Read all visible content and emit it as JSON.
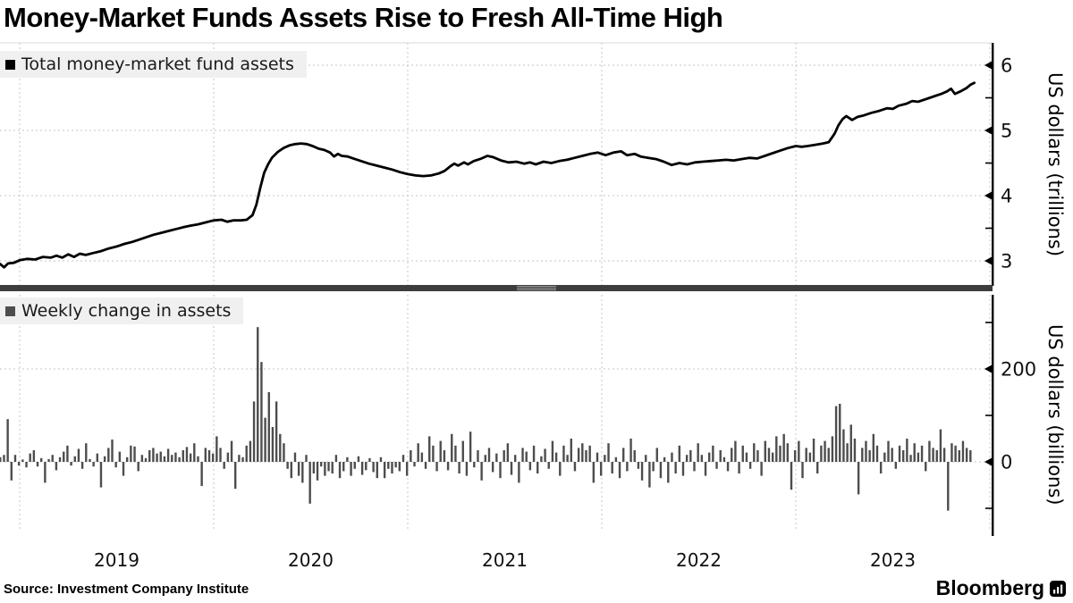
{
  "title": "Money-Market Funds Assets Rise to Fresh All-Time High",
  "source": "Source: Investment Company Institute",
  "brand": {
    "name": "Bloomberg"
  },
  "colors": {
    "line": "#000000",
    "bar": "#4d4d4d",
    "grid": "#c4c4c4",
    "axis": "#000000",
    "legend_bg": "#f0f0f0",
    "separator": "#3d3d3d",
    "legend_swatch_top": "#000000",
    "legend_swatch_bottom": "#4d4d4d",
    "text": "#111111"
  },
  "x_axis": {
    "year_labels": [
      "2019",
      "2020",
      "2021",
      "2022",
      "2023"
    ]
  },
  "panels": [
    {
      "legend": "Total money-market fund assets",
      "axis_title": "US dollars (trillions)",
      "ticks_major": [
        {
          "v": 3,
          "label": "3"
        },
        {
          "v": 4,
          "label": "4"
        },
        {
          "v": 5,
          "label": "5"
        },
        {
          "v": 6,
          "label": "6"
        }
      ],
      "ticks_minor": [
        3.5,
        4.5,
        5.5
      ],
      "gridlines": [
        3,
        4,
        5,
        6
      ]
    },
    {
      "legend": "Weekly change in assets",
      "axis_title": "US dollars (billions)",
      "ticks_major": [
        {
          "v": 0,
          "label": "0"
        },
        {
          "v": 200,
          "label": "200"
        }
      ],
      "ticks_minor": [
        -100,
        100,
        300
      ],
      "gridlines": [
        0,
        200
      ]
    }
  ],
  "chart_data": [
    {
      "type": "line",
      "name": "Total money-market fund assets",
      "x_unit": "decimal_year",
      "y_unit": "US dollars (trillions)",
      "ylim": [
        2.62,
        6.34
      ],
      "xlim": [
        2018.9,
        2024.0
      ],
      "grid": true,
      "legend_position": "top-left",
      "points": [
        [
          2018.9,
          2.95
        ],
        [
          2018.92,
          2.9
        ],
        [
          2018.94,
          2.96
        ],
        [
          2018.97,
          2.97
        ],
        [
          2019.0,
          3.01
        ],
        [
          2019.04,
          3.03
        ],
        [
          2019.08,
          3.02
        ],
        [
          2019.12,
          3.06
        ],
        [
          2019.16,
          3.05
        ],
        [
          2019.19,
          3.08
        ],
        [
          2019.22,
          3.05
        ],
        [
          2019.25,
          3.1
        ],
        [
          2019.28,
          3.06
        ],
        [
          2019.31,
          3.11
        ],
        [
          2019.34,
          3.09
        ],
        [
          2019.38,
          3.12
        ],
        [
          2019.42,
          3.15
        ],
        [
          2019.46,
          3.19
        ],
        [
          2019.5,
          3.22
        ],
        [
          2019.54,
          3.26
        ],
        [
          2019.58,
          3.29
        ],
        [
          2019.62,
          3.33
        ],
        [
          2019.65,
          3.36
        ],
        [
          2019.69,
          3.4
        ],
        [
          2019.73,
          3.43
        ],
        [
          2019.77,
          3.46
        ],
        [
          2019.81,
          3.49
        ],
        [
          2019.85,
          3.52
        ],
        [
          2019.88,
          3.54
        ],
        [
          2019.92,
          3.56
        ],
        [
          2019.96,
          3.59
        ],
        [
          2020.0,
          3.62
        ],
        [
          2020.04,
          3.63
        ],
        [
          2020.07,
          3.6
        ],
        [
          2020.1,
          3.62
        ],
        [
          2020.14,
          3.62
        ],
        [
          2020.17,
          3.63
        ],
        [
          2020.2,
          3.7
        ],
        [
          2020.22,
          3.86
        ],
        [
          2020.24,
          4.12
        ],
        [
          2020.26,
          4.35
        ],
        [
          2020.28,
          4.48
        ],
        [
          2020.3,
          4.58
        ],
        [
          2020.33,
          4.67
        ],
        [
          2020.36,
          4.73
        ],
        [
          2020.39,
          4.77
        ],
        [
          2020.42,
          4.79
        ],
        [
          2020.45,
          4.8
        ],
        [
          2020.48,
          4.79
        ],
        [
          2020.51,
          4.76
        ],
        [
          2020.54,
          4.72
        ],
        [
          2020.57,
          4.7
        ],
        [
          2020.6,
          4.66
        ],
        [
          2020.62,
          4.6
        ],
        [
          2020.64,
          4.64
        ],
        [
          2020.66,
          4.61
        ],
        [
          2020.69,
          4.6
        ],
        [
          2020.72,
          4.57
        ],
        [
          2020.76,
          4.53
        ],
        [
          2020.8,
          4.49
        ],
        [
          2020.84,
          4.46
        ],
        [
          2020.88,
          4.43
        ],
        [
          2020.92,
          4.4
        ],
        [
          2020.96,
          4.36
        ],
        [
          2021.0,
          4.33
        ],
        [
          2021.04,
          4.31
        ],
        [
          2021.08,
          4.3
        ],
        [
          2021.12,
          4.31
        ],
        [
          2021.16,
          4.34
        ],
        [
          2021.19,
          4.38
        ],
        [
          2021.22,
          4.45
        ],
        [
          2021.24,
          4.49
        ],
        [
          2021.26,
          4.46
        ],
        [
          2021.29,
          4.51
        ],
        [
          2021.31,
          4.48
        ],
        [
          2021.34,
          4.53
        ],
        [
          2021.38,
          4.57
        ],
        [
          2021.41,
          4.61
        ],
        [
          2021.44,
          4.59
        ],
        [
          2021.48,
          4.54
        ],
        [
          2021.52,
          4.51
        ],
        [
          2021.56,
          4.52
        ],
        [
          2021.6,
          4.49
        ],
        [
          2021.63,
          4.51
        ],
        [
          2021.66,
          4.48
        ],
        [
          2021.7,
          4.52
        ],
        [
          2021.74,
          4.5
        ],
        [
          2021.78,
          4.53
        ],
        [
          2021.82,
          4.55
        ],
        [
          2021.86,
          4.58
        ],
        [
          2021.9,
          4.61
        ],
        [
          2021.94,
          4.64
        ],
        [
          2021.98,
          4.66
        ],
        [
          2022.02,
          4.62
        ],
        [
          2022.06,
          4.66
        ],
        [
          2022.1,
          4.68
        ],
        [
          2022.13,
          4.62
        ],
        [
          2022.17,
          4.64
        ],
        [
          2022.2,
          4.6
        ],
        [
          2022.24,
          4.58
        ],
        [
          2022.28,
          4.56
        ],
        [
          2022.32,
          4.52
        ],
        [
          2022.36,
          4.47
        ],
        [
          2022.4,
          4.5
        ],
        [
          2022.44,
          4.48
        ],
        [
          2022.48,
          4.51
        ],
        [
          2022.52,
          4.52
        ],
        [
          2022.56,
          4.53
        ],
        [
          2022.6,
          4.54
        ],
        [
          2022.64,
          4.55
        ],
        [
          2022.68,
          4.54
        ],
        [
          2022.72,
          4.56
        ],
        [
          2022.76,
          4.58
        ],
        [
          2022.8,
          4.57
        ],
        [
          2022.84,
          4.61
        ],
        [
          2022.88,
          4.65
        ],
        [
          2022.92,
          4.69
        ],
        [
          2022.96,
          4.73
        ],
        [
          2023.0,
          4.76
        ],
        [
          2023.03,
          4.75
        ],
        [
          2023.06,
          4.76
        ],
        [
          2023.1,
          4.78
        ],
        [
          2023.14,
          4.8
        ],
        [
          2023.17,
          4.82
        ],
        [
          2023.2,
          4.95
        ],
        [
          2023.22,
          5.08
        ],
        [
          2023.24,
          5.17
        ],
        [
          2023.26,
          5.22
        ],
        [
          2023.29,
          5.16
        ],
        [
          2023.32,
          5.21
        ],
        [
          2023.35,
          5.23
        ],
        [
          2023.39,
          5.27
        ],
        [
          2023.43,
          5.3
        ],
        [
          2023.47,
          5.34
        ],
        [
          2023.5,
          5.33
        ],
        [
          2023.53,
          5.38
        ],
        [
          2023.57,
          5.41
        ],
        [
          2023.6,
          5.45
        ],
        [
          2023.63,
          5.44
        ],
        [
          2023.67,
          5.48
        ],
        [
          2023.71,
          5.52
        ],
        [
          2023.75,
          5.56
        ],
        [
          2023.78,
          5.6
        ],
        [
          2023.8,
          5.64
        ],
        [
          2023.82,
          5.56
        ],
        [
          2023.85,
          5.6
        ],
        [
          2023.88,
          5.65
        ],
        [
          2023.9,
          5.7
        ],
        [
          2023.92,
          5.73
        ]
      ]
    },
    {
      "type": "bar",
      "name": "Weekly change in assets",
      "x_unit": "decimal_year_weekly",
      "y_unit": "US dollars (billions)",
      "ylim": [
        -146,
        360
      ],
      "start_year": 2018.9,
      "week_step": 0.019231,
      "values": [
        10,
        15,
        92,
        -40,
        15,
        -8,
        5,
        -12,
        18,
        25,
        -10,
        8,
        -45,
        6,
        15,
        -18,
        10,
        22,
        35,
        -8,
        12,
        28,
        -15,
        40,
        6,
        -10,
        18,
        -55,
        12,
        30,
        48,
        -12,
        22,
        -30,
        10,
        35,
        33,
        -20,
        15,
        8,
        25,
        30,
        18,
        22,
        12,
        28,
        15,
        20,
        10,
        25,
        32,
        18,
        40,
        12,
        -52,
        30,
        25,
        18,
        55,
        30,
        -15,
        20,
        45,
        -58,
        15,
        10,
        35,
        45,
        130,
        290,
        215,
        95,
        150,
        75,
        130,
        60,
        40,
        -15,
        -35,
        20,
        -30,
        -45,
        15,
        -90,
        -25,
        -40,
        -10,
        -30,
        -20,
        -25,
        15,
        -35,
        -20,
        10,
        -30,
        -15,
        12,
        -28,
        -18,
        8,
        -22,
        -35,
        10,
        -35,
        -15,
        -25,
        -12,
        -20,
        15,
        -30,
        25,
        -10,
        40,
        20,
        -15,
        55,
        35,
        -20,
        45,
        25,
        -18,
        60,
        35,
        -25,
        45,
        -30,
        65,
        -12,
        25,
        -40,
        15,
        30,
        -22,
        18,
        -35,
        25,
        40,
        -28,
        15,
        -45,
        30,
        22,
        -18,
        35,
        -25,
        12,
        28,
        -15,
        45,
        20,
        -30,
        35,
        15,
        50,
        -20,
        30,
        40,
        25,
        35,
        -45,
        20,
        -30,
        15,
        40,
        -25,
        10,
        -35,
        30,
        -20,
        50,
        25,
        -15,
        -40,
        15,
        -55,
        -20,
        30,
        -35,
        10,
        -45,
        20,
        -25,
        35,
        -30,
        15,
        25,
        -20,
        40,
        15,
        -30,
        20,
        35,
        -15,
        25,
        10,
        -20,
        30,
        45,
        -25,
        35,
        20,
        -15,
        40,
        25,
        -30,
        45,
        30,
        20,
        55,
        35,
        60,
        40,
        -60,
        25,
        45,
        -35,
        30,
        20,
        50,
        -25,
        35,
        45,
        30,
        55,
        120,
        125,
        70,
        40,
        80,
        50,
        -70,
        30,
        45,
        25,
        60,
        35,
        -25,
        20,
        45,
        30,
        -15,
        35,
        25,
        50,
        15,
        40,
        20,
        35,
        -20,
        45,
        30,
        25,
        70,
        30,
        -105,
        40,
        35,
        25,
        45,
        30,
        25
      ]
    }
  ]
}
